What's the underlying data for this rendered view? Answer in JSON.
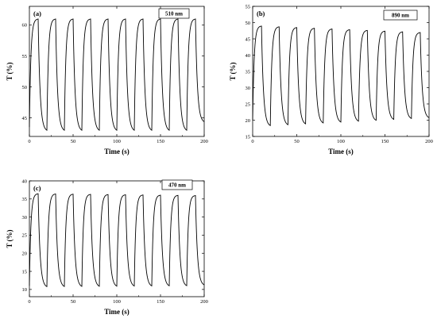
{
  "chart_data": [
    {
      "type": "line",
      "panel_label": "(a)",
      "annotation": "510 nm",
      "xlabel": "Time (s)",
      "ylabel": "T (%)",
      "xlim": [
        0,
        200
      ],
      "ylim": [
        42,
        63
      ],
      "xticks": [
        0,
        50,
        100,
        150,
        200
      ],
      "yticks": [
        45,
        50,
        55,
        60
      ],
      "x_tick_labels": [
        "0",
        "50",
        "100",
        "150",
        "200"
      ],
      "y_tick_labels": [
        "45",
        "50",
        "55",
        "60"
      ],
      "series": [
        {
          "period": 20,
          "cycles": 10,
          "max_start": 61.0,
          "max_end": 61.0,
          "min_start": 42.8,
          "min_end": 42.8,
          "start_value": 43.5,
          "end_value": 44.2
        }
      ]
    },
    {
      "type": "line",
      "panel_label": "(b)",
      "annotation": "890 nm",
      "xlabel": "Time (s)",
      "ylabel": "T (%)",
      "xlim": [
        0,
        200
      ],
      "ylim": [
        15,
        55
      ],
      "xticks": [
        0,
        50,
        100,
        150,
        200
      ],
      "yticks": [
        15,
        20,
        25,
        30,
        35,
        40,
        45,
        50,
        55
      ],
      "x_tick_labels": [
        "0",
        "50",
        "100",
        "150",
        "200"
      ],
      "y_tick_labels": [
        "15",
        "20",
        "25",
        "30",
        "35",
        "40",
        "45",
        "50",
        "55"
      ],
      "series": [
        {
          "period": 20,
          "cycles": 10,
          "max_start": 49.0,
          "max_end": 47.0,
          "min_start": 18.0,
          "min_end": 20.5,
          "start_value": 20.0,
          "end_value": 20.5
        }
      ]
    },
    {
      "type": "line",
      "panel_label": "(c)",
      "annotation": "470 nm",
      "xlabel": "Time (s)",
      "ylabel": "T (%)",
      "xlim": [
        0,
        200
      ],
      "ylim": [
        8,
        40
      ],
      "xticks": [
        0,
        50,
        100,
        150,
        200
      ],
      "yticks": [
        10,
        15,
        20,
        25,
        30,
        35,
        40
      ],
      "x_tick_labels": [
        "0",
        "50",
        "100",
        "150",
        "200"
      ],
      "y_tick_labels": [
        "10",
        "15",
        "20",
        "25",
        "30",
        "35",
        "40"
      ],
      "series": [
        {
          "period": 20,
          "cycles": 10,
          "max_start": 36.5,
          "max_end": 36.0,
          "min_start": 10.5,
          "min_end": 10.8,
          "start_value": 11.0,
          "end_value": 11.0
        }
      ]
    }
  ]
}
